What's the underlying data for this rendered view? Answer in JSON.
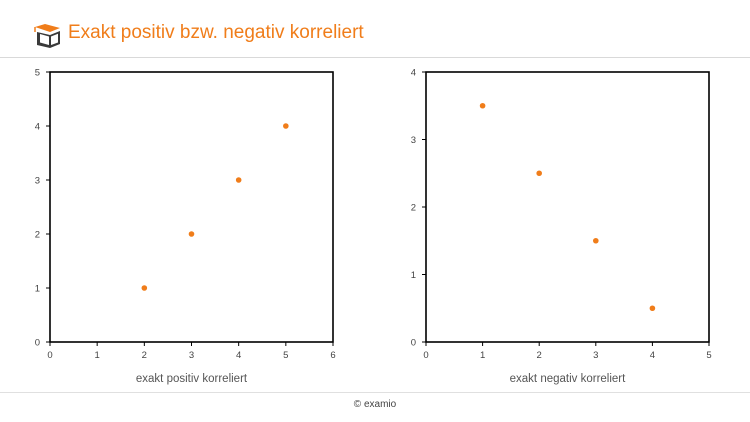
{
  "header": {
    "title": "Exakt positiv bzw. negativ korreliert",
    "logo_icon": "graduation-book-icon",
    "accent_color": "#f07d1a"
  },
  "footer": {
    "copyright": "© examio"
  },
  "chart_data": [
    {
      "type": "scatter",
      "title": "",
      "xlabel": "exakt positiv korreliert",
      "ylabel": "",
      "xlim": [
        0,
        6
      ],
      "ylim": [
        0,
        5
      ],
      "xticks": [
        "0",
        "1",
        "2",
        "3",
        "4",
        "5",
        "6"
      ],
      "yticks": [
        "0",
        "1",
        "2",
        "3",
        "4",
        "5"
      ],
      "grid": false,
      "legend": "none",
      "marker_color": "#f07d1a",
      "points": [
        {
          "x": 2,
          "y": 1
        },
        {
          "x": 3,
          "y": 2
        },
        {
          "x": 4,
          "y": 3
        },
        {
          "x": 5,
          "y": 4
        }
      ]
    },
    {
      "type": "scatter",
      "title": "",
      "xlabel": "exakt negativ korreliert",
      "ylabel": "",
      "xlim": [
        0,
        5
      ],
      "ylim": [
        0,
        4
      ],
      "xticks": [
        "0",
        "1",
        "2",
        "3",
        "4",
        "5"
      ],
      "yticks": [
        "0",
        "1",
        "2",
        "3",
        "4"
      ],
      "grid": false,
      "legend": "none",
      "marker_color": "#f07d1a",
      "points": [
        {
          "x": 1,
          "y": 3.5
        },
        {
          "x": 2,
          "y": 2.5
        },
        {
          "x": 3,
          "y": 1.5
        },
        {
          "x": 4,
          "y": 0.5
        }
      ]
    }
  ]
}
